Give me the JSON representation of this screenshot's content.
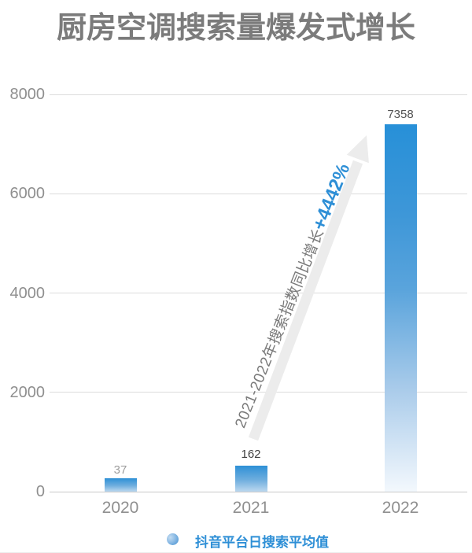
{
  "title": "厨房空调搜索量爆发式增长",
  "chart_data": {
    "type": "bar",
    "title": "厨房空调搜索量爆发式增长",
    "categories": [
      "2020",
      "2021",
      "2022"
    ],
    "series": [
      {
        "name": "抖音平台日搜索平均值",
        "values": [
          37,
          162,
          7358
        ]
      }
    ],
    "xlabel": "",
    "ylabel": "",
    "ylim": [
      0,
      8000
    ],
    "yticks": [
      0,
      2000,
      4000,
      6000,
      8000
    ],
    "grid": true,
    "legend_position": "bottom",
    "annotation": "2021-2022年搜索指数同比增长+4442%"
  },
  "annotation": {
    "prefix": "2021-2022年搜索指数同比增长",
    "highlight": "+4442%"
  },
  "legend": {
    "label": "抖音平台日搜索平均值"
  },
  "colors": {
    "accent_blue": "#2e8fd6",
    "bar_blue_top": "#2a90d8",
    "title_gray": "#7b7b7b",
    "axis_label_gray": "#8f8f8f",
    "grid_line": "#dcdcdc",
    "arrow_gray": "#ececec",
    "annotation_gray": "#7a7a7a",
    "value_label_colors": [
      "#9d9d9d",
      "#3f3f3f",
      "#525252"
    ]
  }
}
